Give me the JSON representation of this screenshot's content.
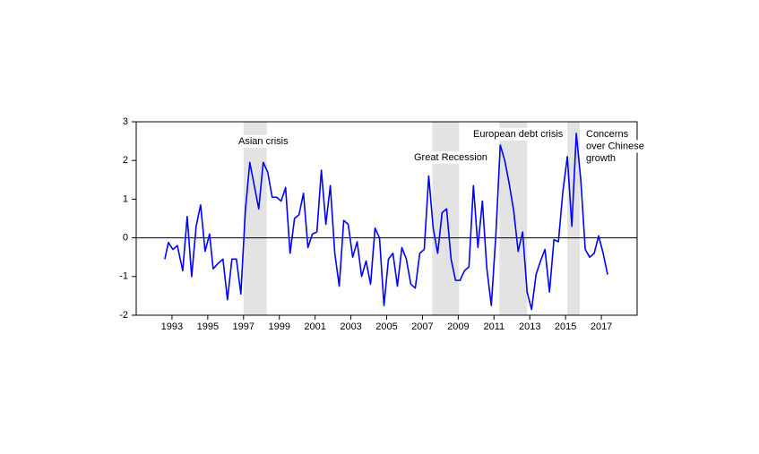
{
  "chart_data": {
    "type": "line",
    "xlim": [
      1991,
      2019
    ],
    "xticks": [
      1993,
      1995,
      1997,
      1999,
      2001,
      2003,
      2005,
      2007,
      2009,
      2011,
      2013,
      2015,
      2017
    ],
    "ylim": [
      -2,
      3
    ],
    "yticks": [
      -2,
      -1,
      0,
      1,
      2,
      3
    ],
    "zero_line": true,
    "shaded_color": "#e3e3e3",
    "shaded_regions": [
      {
        "label": [
          "Asian crisis"
        ],
        "start": 1997.0,
        "end": 1998.3
      },
      {
        "label": [
          "Great Recession"
        ],
        "start": 2007.55,
        "end": 2009.05
      },
      {
        "label": [
          "European debt crisis"
        ],
        "start": 2011.3,
        "end": 2012.85
      },
      {
        "label": [
          "Concerns",
          "over Chinese",
          "growth"
        ],
        "start": 2015.1,
        "end": 2015.8
      }
    ],
    "series": [
      {
        "color": "#0000ff",
        "x": [
          1992.6,
          1992.8,
          1993.05,
          1993.3,
          1993.6,
          1993.85,
          1994.1,
          1994.35,
          1994.6,
          1994.85,
          1995.1,
          1995.3,
          1995.6,
          1995.85,
          1996.1,
          1996.35,
          1996.6,
          1996.85,
          1997.1,
          1997.35,
          1997.6,
          1997.85,
          1998.1,
          1998.35,
          1998.6,
          1998.85,
          1999.1,
          1999.35,
          1999.6,
          1999.85,
          2000.1,
          2000.35,
          2000.6,
          2000.85,
          2001.1,
          2001.35,
          2001.6,
          2001.85,
          2002.1,
          2002.35,
          2002.6,
          2002.85,
          2003.1,
          2003.35,
          2003.6,
          2003.85,
          2004.1,
          2004.35,
          2004.6,
          2004.85,
          2005.1,
          2005.35,
          2005.6,
          2005.85,
          2006.1,
          2006.35,
          2006.6,
          2006.85,
          2007.1,
          2007.35,
          2007.6,
          2007.85,
          2008.1,
          2008.35,
          2008.6,
          2008.85,
          2009.1,
          2009.35,
          2009.6,
          2009.85,
          2010.1,
          2010.35,
          2010.6,
          2010.85,
          2011.1,
          2011.35,
          2011.6,
          2011.85,
          2012.1,
          2012.35,
          2012.6,
          2012.85,
          2013.1,
          2013.35,
          2013.6,
          2013.85,
          2014.1,
          2014.35,
          2014.6,
          2014.85,
          2015.1,
          2015.35,
          2015.6,
          2015.85,
          2016.1,
          2016.35,
          2016.6,
          2016.85,
          2017.1,
          2017.35
        ],
        "values": [
          -0.55,
          -0.12,
          -0.3,
          -0.2,
          -0.85,
          0.55,
          -1.0,
          0.3,
          0.85,
          -0.35,
          0.1,
          -0.8,
          -0.65,
          -0.55,
          -1.6,
          -0.55,
          -0.55,
          -1.45,
          0.7,
          1.95,
          1.35,
          0.75,
          1.95,
          1.7,
          1.05,
          1.05,
          0.95,
          1.3,
          -0.4,
          0.5,
          0.6,
          1.15,
          -0.25,
          0.1,
          0.15,
          1.75,
          0.35,
          1.35,
          -0.4,
          -1.25,
          0.45,
          0.35,
          -0.5,
          -0.1,
          -1.0,
          -0.6,
          -1.2,
          0.25,
          0.0,
          -1.75,
          -0.55,
          -0.4,
          -1.25,
          -0.25,
          -0.55,
          -1.2,
          -1.3,
          -0.4,
          -0.3,
          1.6,
          0.25,
          -0.4,
          0.65,
          0.75,
          -0.55,
          -1.1,
          -1.1,
          -0.85,
          -0.75,
          1.35,
          -0.25,
          0.95,
          -0.8,
          -1.75,
          0.05,
          2.4,
          2.0,
          1.4,
          0.7,
          -0.35,
          0.15,
          -1.4,
          -1.85,
          -0.95,
          -0.6,
          -0.3,
          -1.4,
          -0.05,
          -0.1,
          1.2,
          2.1,
          0.3,
          2.7,
          1.5,
          -0.3,
          -0.5,
          -0.4,
          0.05,
          -0.4,
          -0.95
        ]
      }
    ]
  }
}
